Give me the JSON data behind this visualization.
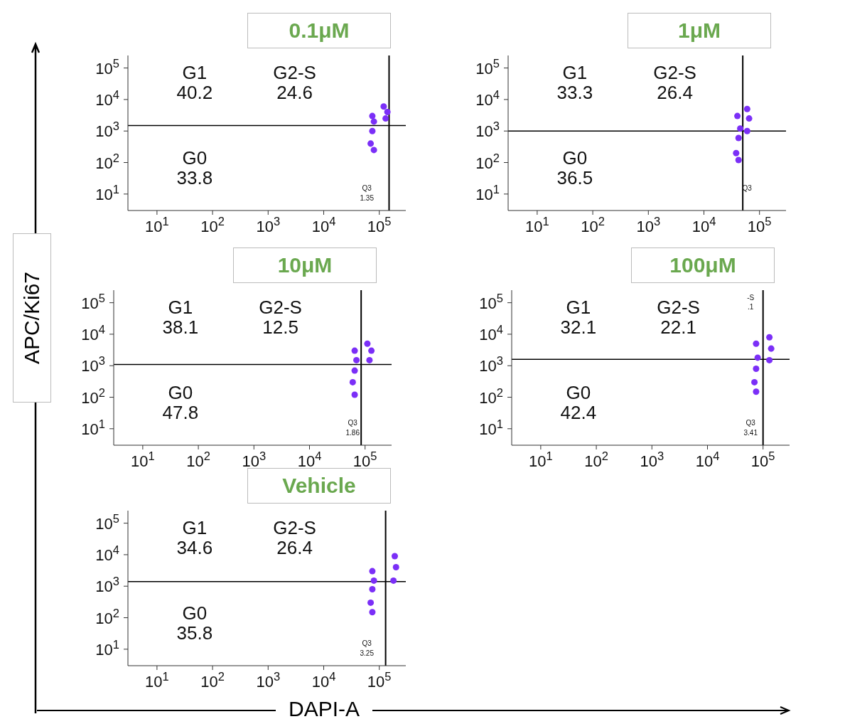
{
  "chart_data": [
    {
      "type": "scatter",
      "title": "0.1μM",
      "xlabel": "DAPI-A",
      "ylabel": "APC/Ki67",
      "log": "xy",
      "xlim": [
        3,
        300000
      ],
      "ylim": [
        3,
        250000
      ],
      "xticks": [
        {
          "value": 10,
          "label": "10$^{1}$"
        },
        {
          "value": 100,
          "label": "10$^{2}$"
        },
        {
          "value": 1000,
          "label": "10$^{3}$"
        },
        {
          "value": 10000,
          "label": "10$^{4}$"
        },
        {
          "value": 100000,
          "label": "10$^{5}$"
        }
      ],
      "yticks": [
        {
          "value": 10,
          "label": "10$^{1}$"
        },
        {
          "value": 100,
          "label": "10$^{2}$"
        },
        {
          "value": 1000,
          "label": "10$^{3}$"
        },
        {
          "value": 10000,
          "label": "10$^{4}$"
        },
        {
          "value": 100000,
          "label": "10$^{5}$"
        }
      ],
      "series": [
        {
          "color": "#7b2ff7",
          "x": [
            70000,
            75000,
            80000,
            75000,
            130000,
            140000,
            120000,
            80000
          ],
          "values": [
            400,
            1000,
            2000,
            3000,
            2500,
            4000,
            6000,
            250
          ]
        }
      ],
      "ref_lines": [
        {
          "axis": "x",
          "value": 150000
        },
        {
          "axis": "y",
          "value": 1500
        }
      ],
      "annotations": [
        "G1",
        "40.2",
        "G2-S",
        "24.6",
        "G0",
        "33.8",
        "Q3",
        "1.35"
      ]
    },
    {
      "type": "scatter",
      "title": "1μM",
      "log": "xy",
      "xlim": [
        3,
        300000
      ],
      "ylim": [
        3,
        250000
      ],
      "xticks": [
        {
          "value": 10,
          "label": "10$^{1}$"
        },
        {
          "value": 100,
          "label": "10$^{2}$"
        },
        {
          "value": 1000,
          "label": "10$^{3}$"
        },
        {
          "value": 10000,
          "label": "10$^{4}$"
        },
        {
          "value": 100000,
          "label": "10$^{5}$"
        }
      ],
      "yticks": [
        {
          "value": 10,
          "label": "10$^{1}$"
        },
        {
          "value": 100,
          "label": "10$^{2}$"
        },
        {
          "value": 1000,
          "label": "10$^{3}$"
        },
        {
          "value": 10000,
          "label": "10$^{4}$"
        },
        {
          "value": 100000,
          "label": "10$^{5}$"
        }
      ],
      "series": [
        {
          "color": "#7b2ff7",
          "x": [
            38000,
            42000,
            45000,
            40000,
            60000,
            65000,
            60000,
            42000
          ],
          "values": [
            200,
            600,
            1200,
            3000,
            1000,
            2500,
            5000,
            120
          ]
        }
      ],
      "ref_lines": [
        {
          "axis": "x",
          "value": 50000
        },
        {
          "axis": "y",
          "value": 1000
        }
      ],
      "annotations": [
        "G1",
        "33.3",
        "G2-S",
        "26.4",
        "G0",
        "36.5",
        "Q3"
      ]
    },
    {
      "type": "scatter",
      "title": "10μM",
      "log": "xy",
      "xlim": [
        3,
        300000
      ],
      "ylim": [
        3,
        250000
      ],
      "xticks": [
        {
          "value": 10,
          "label": "10$^{1}$"
        },
        {
          "value": 100,
          "label": "10$^{2}$"
        },
        {
          "value": 1000,
          "label": "10$^{3}$"
        },
        {
          "value": 10000,
          "label": "10$^{4}$"
        },
        {
          "value": 100000,
          "label": "10$^{5}$"
        }
      ],
      "yticks": [
        {
          "value": 10,
          "label": "10$^{1}$"
        },
        {
          "value": 100,
          "label": "10$^{2}$"
        },
        {
          "value": 1000,
          "label": "10$^{3}$"
        },
        {
          "value": 10000,
          "label": "10$^{4}$"
        },
        {
          "value": 100000,
          "label": "10$^{5}$"
        }
      ],
      "series": [
        {
          "color": "#7b2ff7",
          "x": [
            60000,
            65000,
            70000,
            65000,
            120000,
            130000,
            110000,
            65000
          ],
          "values": [
            300,
            700,
            1500,
            3000,
            1500,
            3000,
            5000,
            120
          ]
        }
      ],
      "ref_lines": [
        {
          "axis": "x",
          "value": 85000
        },
        {
          "axis": "y",
          "value": 1100
        }
      ],
      "annotations": [
        "G1",
        "38.1",
        "G2-S",
        "12.5",
        "G0",
        "47.8",
        "Q3",
        "1.86"
      ]
    },
    {
      "type": "scatter",
      "title": "100μM",
      "log": "xy",
      "xlim": [
        3,
        300000
      ],
      "ylim": [
        3,
        250000
      ],
      "xticks": [
        {
          "value": 10,
          "label": "10$^{1}$"
        },
        {
          "value": 100,
          "label": "10$^{2}$"
        },
        {
          "value": 1000,
          "label": "10$^{3}$"
        },
        {
          "value": 10000,
          "label": "10$^{4}$"
        },
        {
          "value": 100000,
          "label": "10$^{5}$"
        }
      ],
      "yticks": [
        {
          "value": 10,
          "label": "10$^{1}$"
        },
        {
          "value": 100,
          "label": "10$^{2}$"
        },
        {
          "value": 1000,
          "label": "10$^{3}$"
        },
        {
          "value": 10000,
          "label": "10$^{4}$"
        },
        {
          "value": 100000,
          "label": "10$^{5}$"
        }
      ],
      "series": [
        {
          "color": "#7b2ff7",
          "x": [
            70000,
            75000,
            80000,
            75000,
            130000,
            140000,
            130000,
            75000
          ],
          "values": [
            300,
            800,
            1800,
            5000,
            1500,
            3500,
            8000,
            150
          ]
        }
      ],
      "ref_lines": [
        {
          "axis": "x",
          "value": 100000
        },
        {
          "axis": "y",
          "value": 1600
        }
      ],
      "annotations": [
        "G1",
        "32.1",
        "G2-S",
        "22.1",
        "G0",
        "42.4",
        "Q3",
        "3.41",
        "-S",
        ".1"
      ]
    },
    {
      "type": "scatter",
      "title": "Vehicle",
      "log": "xy",
      "xlim": [
        3,
        300000
      ],
      "ylim": [
        3,
        250000
      ],
      "xticks": [
        {
          "value": 10,
          "label": "10$^{1}$"
        },
        {
          "value": 100,
          "label": "10$^{2}$"
        },
        {
          "value": 1000,
          "label": "10$^{3}$"
        },
        {
          "value": 10000,
          "label": "10$^{4}$"
        },
        {
          "value": 100000,
          "label": "10$^{5}$"
        }
      ],
      "yticks": [
        {
          "value": 10,
          "label": "10$^{1}$"
        },
        {
          "value": 100,
          "label": "10$^{2}$"
        },
        {
          "value": 1000,
          "label": "10$^{3}$"
        },
        {
          "value": 10000,
          "label": "10$^{4}$"
        },
        {
          "value": 100000,
          "label": "10$^{5}$"
        }
      ],
      "series": [
        {
          "color": "#7b2ff7",
          "x": [
            70000,
            75000,
            80000,
            75000,
            180000,
            200000,
            190000,
            75000
          ],
          "values": [
            300,
            800,
            1500,
            3000,
            1500,
            4000,
            9000,
            150
          ]
        }
      ],
      "ref_lines": [
        {
          "axis": "x",
          "value": 130000
        },
        {
          "axis": "y",
          "value": 1400
        }
      ],
      "annotations": [
        "G1",
        "34.6",
        "G2-S",
        "26.4",
        "G0",
        "35.8",
        "Q3",
        "3.25"
      ]
    }
  ]
}
